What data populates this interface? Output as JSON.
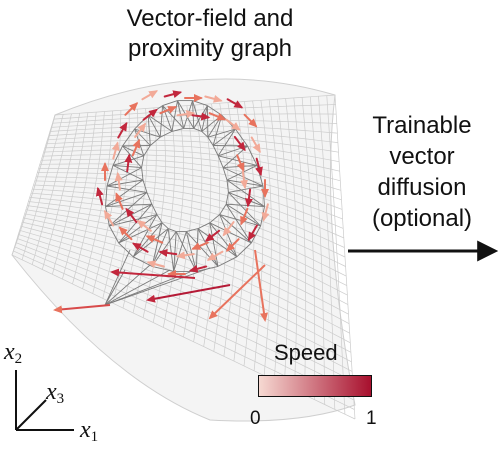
{
  "title": {
    "line1": "Vector-field and",
    "line2": "proximity graph"
  },
  "step": {
    "line1": "Trainable",
    "line2": "vector",
    "line3": "diffusion",
    "line4": "(optional)"
  },
  "axes": {
    "x1": {
      "var": "x",
      "sub": "1"
    },
    "x2": {
      "var": "x",
      "sub": "2"
    },
    "x3": {
      "var": "x",
      "sub": "3"
    }
  },
  "colorbar": {
    "title": "Speed",
    "min_label": "0",
    "max_label": "1",
    "color_low": "#f6d9d2",
    "color_high": "#a8102e"
  },
  "colors": {
    "graph_edges": "#7a7a7a",
    "surface_grid": "#c8c8c8",
    "arrow": "#111111"
  }
}
